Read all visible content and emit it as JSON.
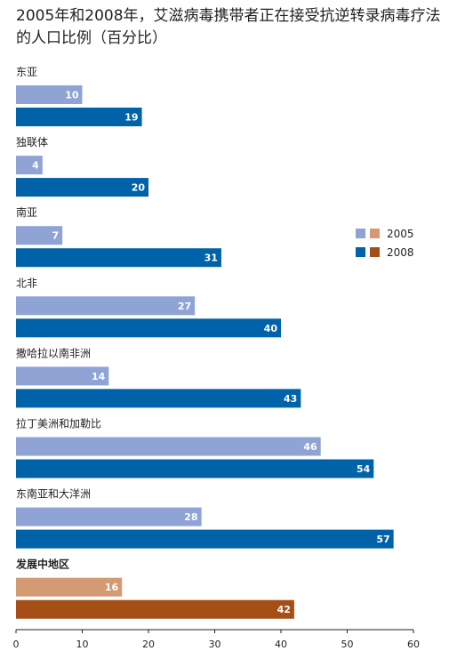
{
  "chart_data": {
    "type": "bar",
    "orientation": "horizontal",
    "title": "2005年和2008年，艾滋病毒携带者正在接受抗逆转录病毒疗法的人口比例（百分比）",
    "categories": [
      "东亚",
      "独联体",
      "南亚",
      "北非",
      "撒哈拉以南非洲",
      "拉丁美洲和加勒比",
      "东南亚和大洋洲",
      "发展中地区"
    ],
    "series": [
      {
        "name": "2005",
        "values": [
          10,
          4,
          7,
          27,
          14,
          46,
          28,
          16
        ]
      },
      {
        "name": "2008",
        "values": [
          19,
          20,
          31,
          40,
          43,
          54,
          57,
          42
        ]
      }
    ],
    "highlight_category": "发展中地区",
    "xlim": [
      0,
      60
    ],
    "xticks": [
      0,
      10,
      20,
      30,
      40,
      50,
      60
    ],
    "grid": false,
    "legend_position": "right",
    "colors": {
      "2005": "#8fa3d4",
      "2008": "#0062a8",
      "2005_highlight": "#d39a73",
      "2008_highlight": "#a54e16",
      "axis": "#231f20"
    }
  }
}
